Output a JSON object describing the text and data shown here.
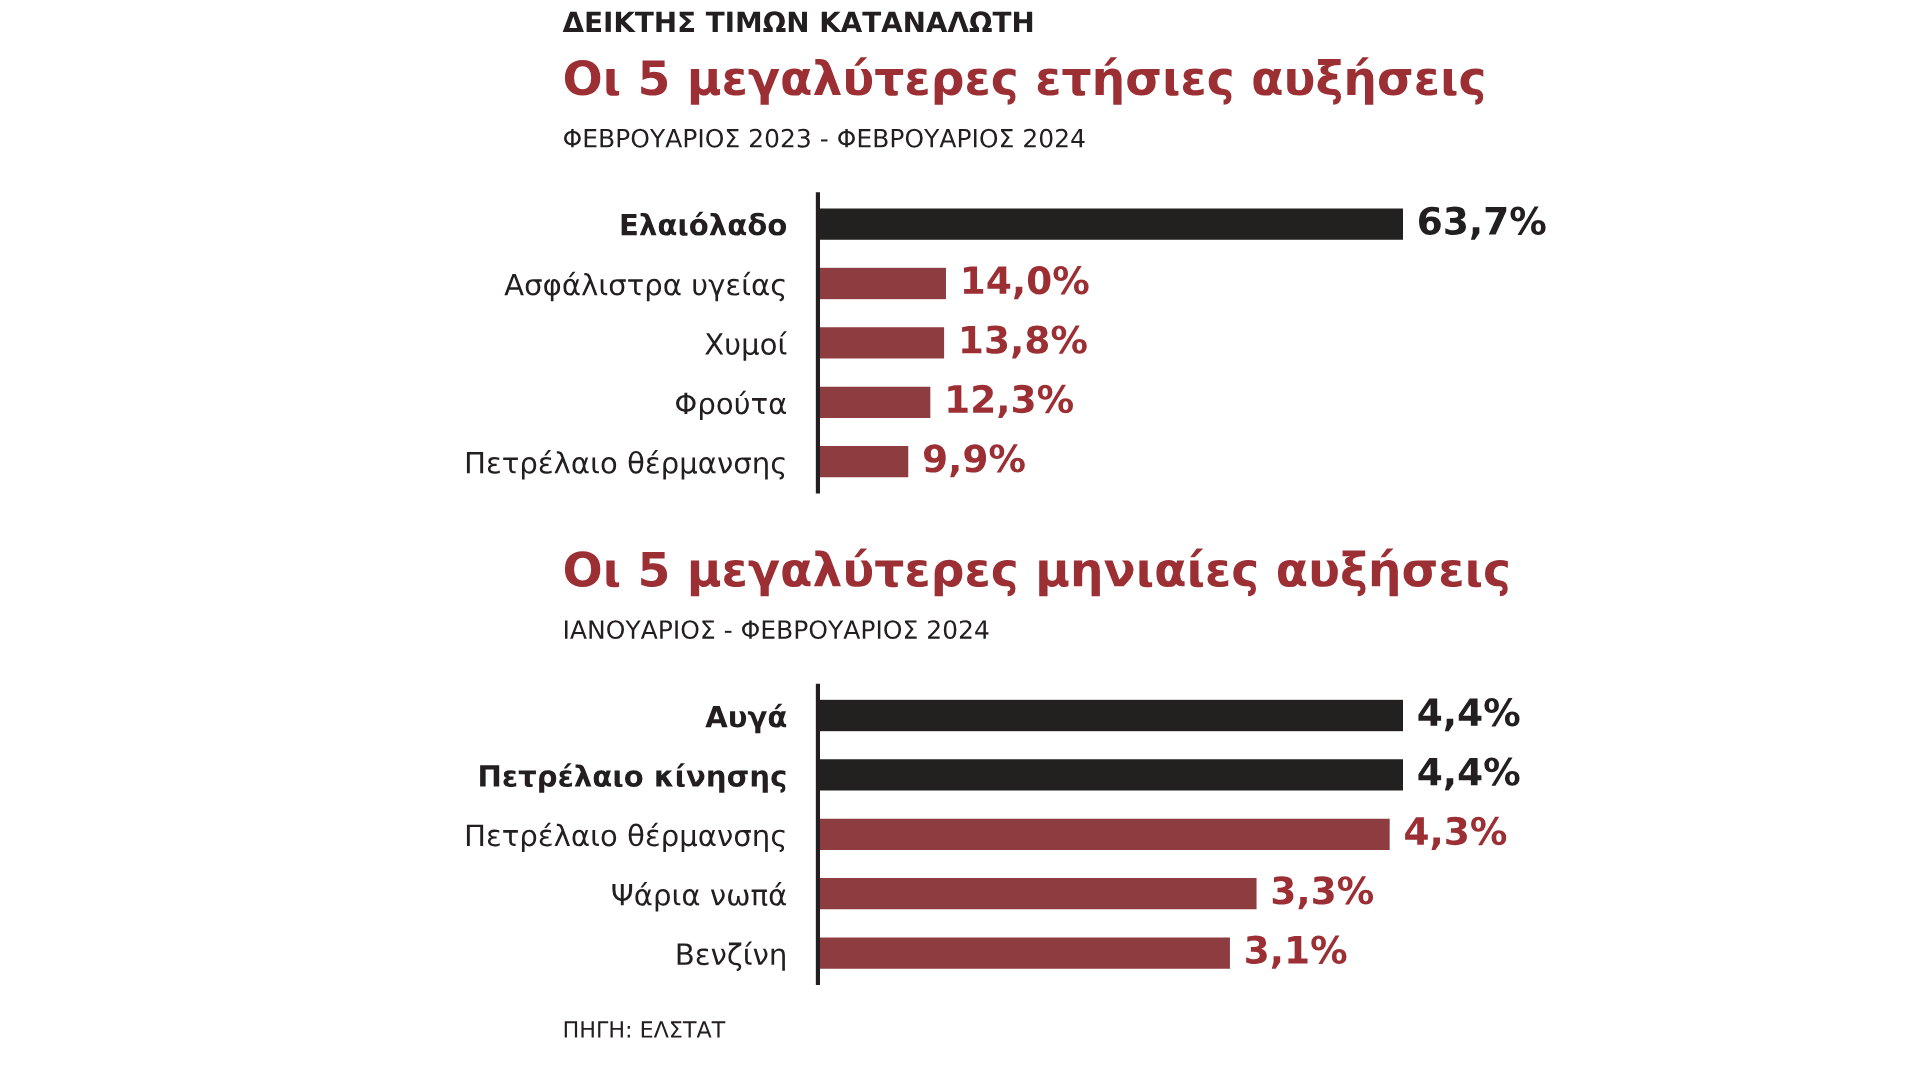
{
  "chart_data": [
    {
      "type": "bar",
      "orientation": "horizontal",
      "title": "Οι 5 μεγαλύτερες ετήσιες αυξήσεις",
      "subtitle": "ΦΕΒΡΟΥΑΡΙΟΣ 2023 - ΦΕΒΡΟΥΑΡΙΟΣ 2024",
      "annotations": [
        "ΔΕΙΚΤΗΣ ΤΙΜΩΝ ΚΑΤΑΝΑΛΩΤΗ"
      ],
      "categories": [
        "Ελαιόλαδο",
        "Ασφάλιστρα υγείας",
        "Χυμοί",
        "Φρούτα",
        "Πετρέλαιο θέρμανσης"
      ],
      "values": [
        63.7,
        14.0,
        13.8,
        12.3,
        9.9
      ],
      "colors": [
        "#231f20",
        "#9b2f34",
        "#9b2f34",
        "#9b2f34",
        "#9b2f34"
      ],
      "value_labels": [
        "63,7%",
        "14,0%",
        "13,8%",
        "12,3%",
        "9,9%"
      ],
      "grid": false,
      "legend": false,
      "tick_labels": "y"
    },
    {
      "type": "bar",
      "orientation": "horizontal",
      "title": "Οι 5 μεγαλύτερες μηνιαίες αυξήσεις",
      "subtitle": "ΙΑΝΟΥΑΡΙΟΣ - ΦΕΒΡΟΥΑΡΙΟΣ 2024",
      "annotations": [
        "ΠΗΓΗ: ΕΛΣΤΑΤ"
      ],
      "categories": [
        "Αυγά",
        "Πετρέλαιο κίνησης",
        "Πετρέλαιο θέρμανσης",
        "Ψάρια νωπά",
        "Βενζίνη"
      ],
      "values": [
        4.4,
        4.4,
        4.3,
        3.3,
        3.1
      ],
      "colors": [
        "#231f20",
        "#231f20",
        "#9b2f34",
        "#9b2f34",
        "#9b2f34"
      ],
      "value_labels": [
        "4,4%",
        "4,4%",
        "4,3%",
        "3,3%",
        "3,1%"
      ],
      "grid": false,
      "legend": false,
      "tick_labels": "y"
    }
  ]
}
